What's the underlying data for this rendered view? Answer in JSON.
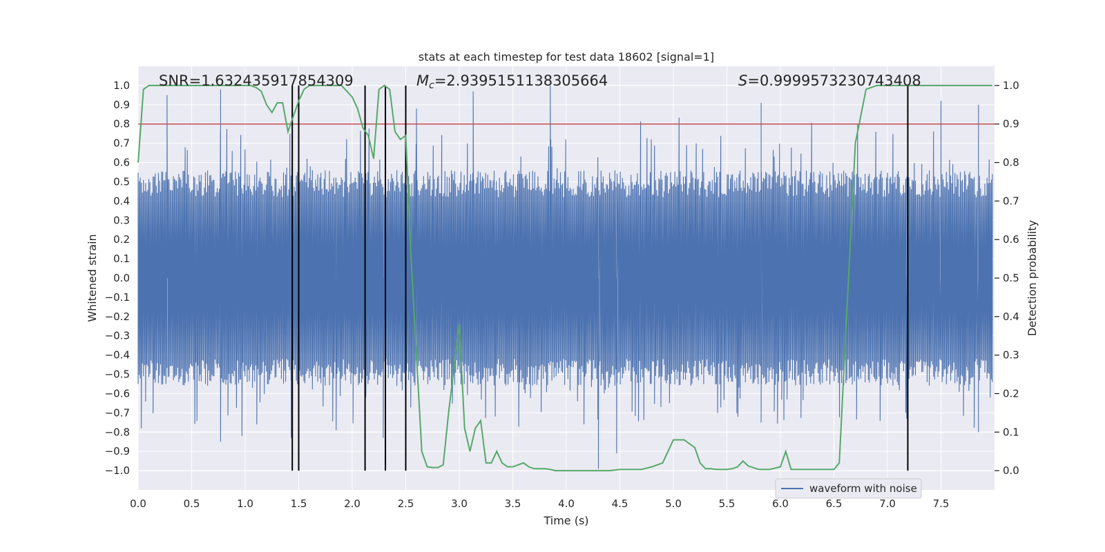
{
  "chart_data": {
    "type": "line",
    "title": "stats at each timestep for test data 18602 [signal=1]",
    "xlabel": "Time (s)",
    "ylabel": "Whitened strain",
    "ylabel_right": "Detection probability",
    "xlim": [
      0,
      8
    ],
    "ylim": [
      -1.1,
      1.1
    ],
    "ylim_right": [
      -0.05,
      1.05
    ],
    "grid": true,
    "x_ticks": [
      0.0,
      0.5,
      1.0,
      1.5,
      2.0,
      2.5,
      3.0,
      3.5,
      4.0,
      4.5,
      5.0,
      5.5,
      6.0,
      6.5,
      7.0,
      7.5
    ],
    "x_tick_labels": [
      "0.0",
      "0.5",
      "1.0",
      "1.5",
      "2.0",
      "2.5",
      "3.0",
      "3.5",
      "4.0",
      "4.5",
      "5.0",
      "5.5",
      "6.0",
      "6.5",
      "7.0",
      "7.5"
    ],
    "y_ticks": [
      1.0,
      0.9,
      0.8,
      0.7,
      0.6,
      0.5,
      0.4,
      0.3,
      0.2,
      0.1,
      0.0,
      -0.1,
      -0.2,
      -0.3,
      -0.4,
      -0.5,
      -0.6,
      -0.7,
      -0.8,
      -0.9,
      -1.0
    ],
    "y_tick_labels": [
      "1.0",
      "0.9",
      "0.8",
      "0.7",
      "0.6",
      "0.5",
      "0.4",
      "0.3",
      "0.2",
      "0.1",
      "0.0",
      "−0.1",
      "−0.2",
      "−0.3",
      "−0.4",
      "−0.5",
      "−0.6",
      "−0.7",
      "−0.8",
      "−0.9",
      "−1.0"
    ],
    "y_right_ticks": [
      1.0,
      0.9,
      0.8,
      0.7,
      0.6,
      0.5,
      0.4,
      0.3,
      0.2,
      0.1,
      0.0
    ],
    "y_right_tick_labels": [
      "1.0",
      "0.9",
      "0.8",
      "0.7",
      "0.6",
      "0.5",
      "0.4",
      "0.3",
      "0.2",
      "0.1",
      "0.0"
    ],
    "threshold": 0.8,
    "detection_lines_x": [
      1.44,
      1.5,
      2.12,
      2.31,
      2.5,
      7.19
    ],
    "detection_lines_range": [
      -1.0,
      1.0
    ],
    "probability_series": {
      "name": "Detection probability",
      "color": "#55a868",
      "x": [
        0.0,
        0.05,
        0.1,
        0.15,
        0.2,
        0.3,
        0.4,
        0.5,
        0.6,
        0.7,
        0.8,
        0.9,
        1.0,
        1.05,
        1.1,
        1.15,
        1.2,
        1.25,
        1.3,
        1.35,
        1.4,
        1.45,
        1.5,
        1.55,
        1.6,
        1.65,
        1.7,
        1.8,
        1.9,
        2.0,
        2.05,
        2.1,
        2.15,
        2.2,
        2.25,
        2.3,
        2.35,
        2.4,
        2.45,
        2.5,
        2.55,
        2.6,
        2.65,
        2.7,
        2.75,
        2.8,
        2.85,
        2.9,
        3.0,
        3.05,
        3.1,
        3.15,
        3.2,
        3.25,
        3.3,
        3.35,
        3.4,
        3.45,
        3.5,
        3.55,
        3.6,
        3.65,
        3.7,
        3.75,
        3.8,
        3.85,
        3.9,
        3.95,
        4.0,
        4.05,
        4.1,
        4.15,
        4.2,
        4.3,
        4.4,
        4.5,
        4.6,
        4.7,
        4.8,
        4.9,
        5.0,
        5.1,
        5.2,
        5.25,
        5.3,
        5.35,
        5.4,
        5.45,
        5.5,
        5.55,
        5.6,
        5.65,
        5.7,
        5.8,
        5.9,
        6.0,
        6.05,
        6.1,
        6.15,
        6.2,
        6.25,
        6.3,
        6.35,
        6.4,
        6.45,
        6.5,
        6.55,
        6.6,
        6.7,
        6.8,
        6.9,
        7.0,
        7.05,
        7.1,
        7.15,
        7.2,
        7.25,
        7.3,
        7.35,
        7.4,
        7.5,
        7.6,
        7.7,
        7.8,
        7.9,
        7.98
      ],
      "values": [
        0.8,
        0.99,
        1.0,
        1.0,
        1.0,
        1.0,
        1.0,
        1.0,
        1.0,
        1.0,
        1.0,
        1.0,
        1.0,
        1.0,
        0.995,
        0.985,
        0.95,
        0.93,
        0.955,
        0.955,
        0.88,
        0.92,
        0.96,
        0.99,
        1.0,
        1.0,
        1.0,
        1.0,
        1.0,
        0.97,
        0.94,
        0.89,
        0.87,
        0.81,
        0.99,
        1.0,
        0.99,
        0.88,
        0.86,
        0.87,
        0.55,
        0.3,
        0.05,
        0.01,
        0.008,
        0.008,
        0.015,
        0.15,
        0.38,
        0.11,
        0.05,
        0.11,
        0.13,
        0.02,
        0.02,
        0.05,
        0.02,
        0.01,
        0.01,
        0.015,
        0.02,
        0.01,
        0.005,
        0.005,
        0.005,
        0.003,
        0.0,
        0.0,
        0.0,
        0.0,
        0.0,
        0.0,
        0.0,
        0.0,
        0.0,
        0.003,
        0.003,
        0.003,
        0.01,
        0.02,
        0.08,
        0.08,
        0.06,
        0.02,
        0.005,
        0.005,
        0.003,
        0.003,
        0.003,
        0.005,
        0.01,
        0.025,
        0.012,
        0.003,
        0.003,
        0.01,
        0.05,
        0.003,
        0.003,
        0.003,
        0.003,
        0.003,
        0.003,
        0.003,
        0.003,
        0.003,
        0.02,
        0.3,
        0.85,
        0.99,
        1.0,
        1.0,
        1.0,
        1.0,
        1.0,
        1.0,
        1.0,
        1.0,
        1.0,
        1.0,
        1.0,
        1.0,
        1.0,
        1.0,
        1.0,
        1.0
      ]
    },
    "waveform_series": {
      "name": "waveform with noise",
      "color": "#4c72b0",
      "x_range": [
        0,
        7.98
      ],
      "sample_count": 800,
      "note_dense": true,
      "peak_values": [
        {
          "x": 0.03,
          "y": -0.78
        },
        {
          "x": 0.27,
          "y": 0.95
        },
        {
          "x": 0.77,
          "y": 0.98
        },
        {
          "x": 0.77,
          "y": -0.85
        },
        {
          "x": 0.97,
          "y": -0.82
        },
        {
          "x": 1.43,
          "y": -0.83
        },
        {
          "x": 1.85,
          "y": -0.79
        },
        {
          "x": 2.29,
          "y": -0.83
        },
        {
          "x": 2.6,
          "y": 0.88
        },
        {
          "x": 3.13,
          "y": 0.97
        },
        {
          "x": 3.85,
          "y": 1.0
        },
        {
          "x": 4.3,
          "y": -0.99
        },
        {
          "x": 4.47,
          "y": -0.91
        },
        {
          "x": 5.82,
          "y": 0.91
        },
        {
          "x": 5.82,
          "y": -0.75
        },
        {
          "x": 7.18,
          "y": -0.73
        },
        {
          "x": 7.5,
          "y": 0.92
        },
        {
          "x": 7.85,
          "y": 0.9
        },
        {
          "x": 7.85,
          "y": -0.8
        }
      ]
    },
    "threshold_color": "#c44e52",
    "detection_line_color": "#000000",
    "annotations": {
      "snr": "SNR=1.632435917854309",
      "mc_symbol": "M",
      "mc_sub": "c",
      "mc_value": "=2.9395151138305664",
      "s_symbol": "S",
      "s_value": "=0.9999573230743408"
    },
    "legend": {
      "label": "waveform with noise",
      "position": "lower-right"
    },
    "colors": {
      "plot_background": "#eaeaf2",
      "grid": "#ffffff",
      "text": "#262626"
    }
  }
}
